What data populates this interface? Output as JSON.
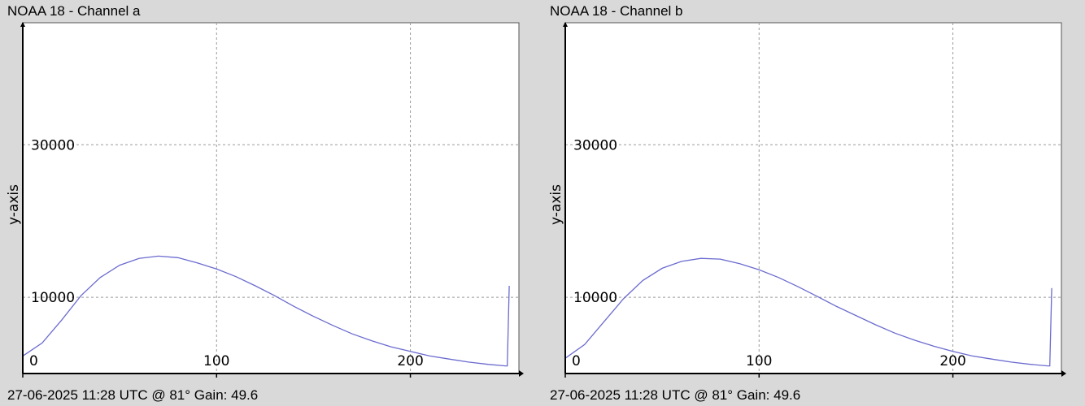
{
  "panels": [
    {
      "title": "NOAA 18 - Channel a",
      "footer": "27-06-2025 11:28 UTC @ 81° Gain: 49.6"
    },
    {
      "title": "NOAA 18 - Channel b",
      "footer": "27-06-2025 11:28 UTC @ 81° Gain: 49.6"
    }
  ],
  "colors": {
    "background": "#d9d9d9",
    "plot_background": "#ffffff",
    "series": "#6b6bd0",
    "grid": "#9a9a9a"
  },
  "chart_data": [
    {
      "type": "line",
      "title": "NOAA 18 - Channel a",
      "xlabel": "",
      "ylabel": "y-axis",
      "xlim": [
        0,
        256
      ],
      "ylim": [
        0,
        46000
      ],
      "xticks": [
        0,
        100,
        200
      ],
      "yticks": [
        10000,
        30000
      ],
      "xtick_labels": [
        "0",
        "100",
        "200"
      ],
      "ytick_labels": [
        "10000",
        "30000"
      ],
      "grid": true,
      "series": [
        {
          "x": [
            0,
            10,
            20,
            30,
            40,
            50,
            60,
            70,
            80,
            90,
            100,
            110,
            120,
            130,
            140,
            150,
            160,
            170,
            180,
            190,
            200,
            210,
            220,
            230,
            240,
            249,
            250,
            251
          ],
          "values": [
            2300,
            4000,
            7000,
            10200,
            12600,
            14200,
            15100,
            15400,
            15200,
            14500,
            13700,
            12700,
            11500,
            10200,
            8800,
            7500,
            6300,
            5200,
            4300,
            3500,
            2900,
            2300,
            1900,
            1500,
            1200,
            1000,
            1000,
            11500
          ]
        }
      ]
    },
    {
      "type": "line",
      "title": "NOAA 18 - Channel b",
      "xlabel": "",
      "ylabel": "y-axis",
      "xlim": [
        0,
        256
      ],
      "ylim": [
        0,
        46000
      ],
      "xticks": [
        0,
        100,
        200
      ],
      "yticks": [
        10000,
        30000
      ],
      "xtick_labels": [
        "0",
        "100",
        "200"
      ],
      "ytick_labels": [
        "10000",
        "30000"
      ],
      "grid": true,
      "series": [
        {
          "x": [
            0,
            10,
            20,
            30,
            40,
            50,
            60,
            70,
            80,
            90,
            100,
            110,
            120,
            130,
            140,
            150,
            160,
            170,
            180,
            190,
            200,
            210,
            220,
            230,
            240,
            249,
            250,
            251
          ],
          "values": [
            2000,
            3800,
            6800,
            9800,
            12200,
            13800,
            14700,
            15100,
            15000,
            14400,
            13600,
            12600,
            11400,
            10100,
            8800,
            7600,
            6400,
            5300,
            4400,
            3600,
            2900,
            2300,
            1900,
            1500,
            1200,
            1000,
            1000,
            11200
          ]
        }
      ]
    }
  ]
}
